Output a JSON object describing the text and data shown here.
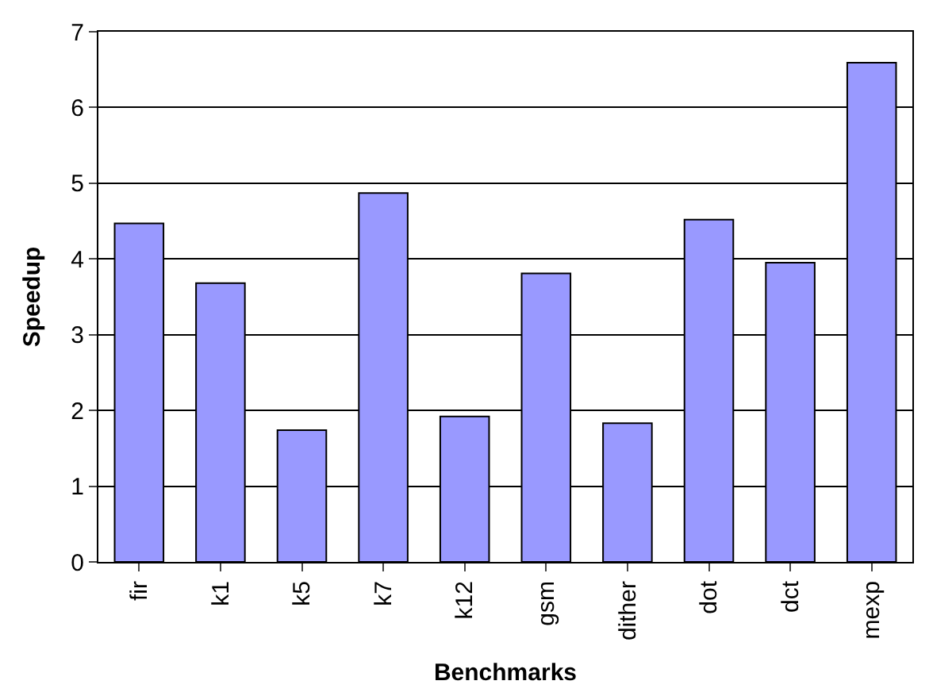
{
  "chart_data": {
    "type": "bar",
    "xlabel": "Benchmarks",
    "ylabel": "Speedup",
    "categories": [
      "fir",
      "k1",
      "k5",
      "k7",
      "k12",
      "gsm",
      "dither",
      "dot",
      "dct",
      "mexp"
    ],
    "values": [
      4.47,
      3.68,
      1.74,
      4.87,
      1.92,
      3.81,
      1.83,
      4.52,
      3.95,
      6.59
    ],
    "color": "#9999ff",
    "ylim": [
      0,
      7
    ],
    "yticks": [
      0,
      1,
      2,
      3,
      4,
      5,
      6,
      7
    ],
    "grid": "y",
    "legend": false
  }
}
